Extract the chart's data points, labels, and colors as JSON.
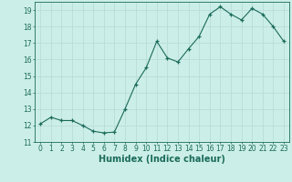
{
  "x": [
    0,
    1,
    2,
    3,
    4,
    5,
    6,
    7,
    8,
    9,
    10,
    11,
    12,
    13,
    14,
    15,
    16,
    17,
    18,
    19,
    20,
    21,
    22,
    23
  ],
  "y": [
    12.1,
    12.5,
    12.3,
    12.3,
    12.0,
    11.65,
    11.55,
    11.6,
    13.0,
    14.5,
    15.5,
    17.1,
    16.1,
    15.85,
    16.65,
    17.4,
    18.75,
    19.2,
    18.75,
    18.4,
    19.1,
    18.75,
    18.0,
    17.1
  ],
  "line_color": "#1a6b5a",
  "marker": "+",
  "marker_size": 3,
  "background_color": "#cceee8",
  "grid_color": "#b8ddd8",
  "xlabel": "Humidex (Indice chaleur)",
  "ylim": [
    11,
    19.5
  ],
  "xlim": [
    -0.5,
    23.5
  ],
  "yticks": [
    11,
    12,
    13,
    14,
    15,
    16,
    17,
    18,
    19
  ],
  "xticks": [
    0,
    1,
    2,
    3,
    4,
    5,
    6,
    7,
    8,
    9,
    10,
    11,
    12,
    13,
    14,
    15,
    16,
    17,
    18,
    19,
    20,
    21,
    22,
    23
  ],
  "tick_label_fontsize": 5.5,
  "xlabel_fontsize": 7.0,
  "label_color": "#1a6b5a"
}
